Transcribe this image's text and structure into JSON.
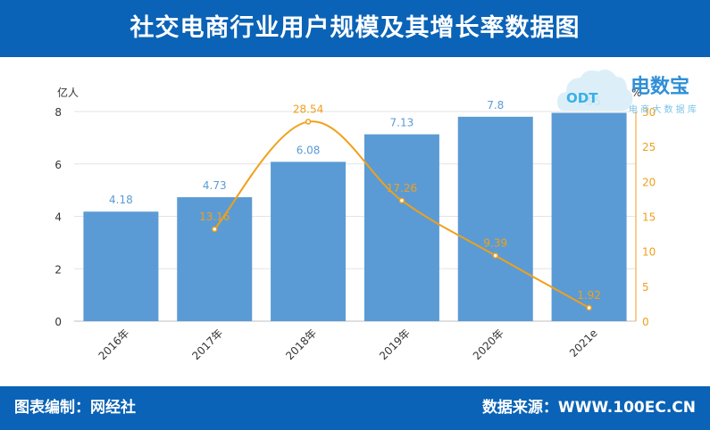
{
  "header": {
    "title": "社交电商行业用户规模及其增长率数据图"
  },
  "footer": {
    "source_left": "图表编制：网经社",
    "source_right": "数据来源：WWW.100EC.CN"
  },
  "watermark": {
    "brand_main": "电数宝",
    "brand_sub": "电 商 大 数 据 库",
    "badge": "ODT"
  },
  "colors": {
    "bar": "#5b9bd5",
    "line": "#f0a01a",
    "header": "#0a63b6",
    "bar_label": "#5b9bd5"
  },
  "chart_data": {
    "type": "bar",
    "categories": [
      "2016年",
      "2017年",
      "2018年",
      "2019年",
      "2020年",
      "2021e"
    ],
    "series": [
      {
        "values": [
          4.18,
          4.73,
          6.08,
          7.13,
          7.8,
          7.95
        ],
        "axis": "left",
        "kind": "bar"
      },
      {
        "values": [
          null,
          13.16,
          28.54,
          17.26,
          9.39,
          1.92
        ],
        "axis": "right",
        "kind": "line"
      }
    ],
    "ylabel": "亿人",
    "y2label": "%",
    "ylim": [
      0,
      8
    ],
    "y2lim": [
      0,
      30
    ],
    "yticks": [
      0,
      2,
      4,
      6,
      8
    ],
    "y2ticks": [
      0,
      5,
      10,
      15,
      20,
      25,
      30
    ],
    "grid": true
  }
}
